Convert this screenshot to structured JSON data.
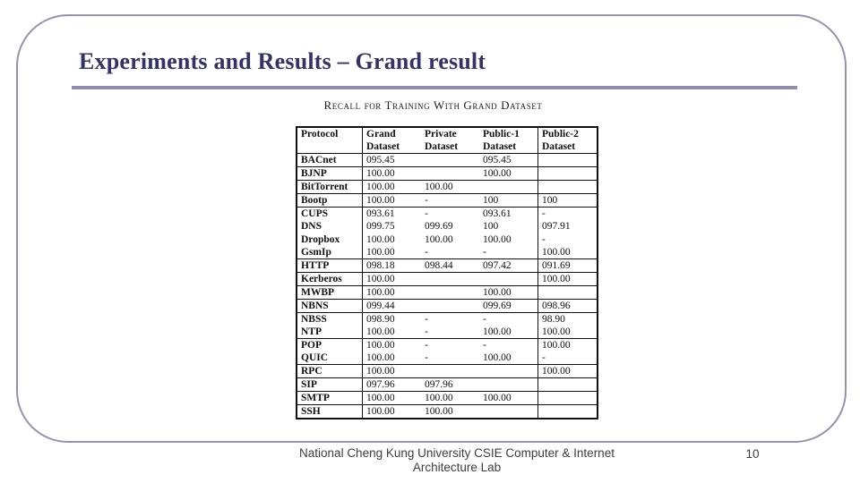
{
  "slide": {
    "title": "Experiments and Results – Grand result",
    "footer": {
      "line1": "National Cheng Kung University CSIE Computer & Internet",
      "line2": "Architecture Lab"
    },
    "page_number": "10"
  },
  "table": {
    "caption": "Recall for Training With Grand Dataset",
    "columns": [
      "Protocol",
      "Grand Dataset",
      "Private Dataset",
      "Public-1 Dataset",
      "Public-2 Dataset"
    ],
    "rows": [
      {
        "protocol": "BACnet",
        "values": [
          "095.45",
          "",
          "095.45",
          ""
        ],
        "line_after": true
      },
      {
        "protocol": "BJNP",
        "values": [
          "100.00",
          "",
          "100.00",
          ""
        ],
        "line_after": true
      },
      {
        "protocol": "BitTorrent",
        "values": [
          "100.00",
          "100.00",
          "",
          ""
        ],
        "line_after": true
      },
      {
        "protocol": "Bootp",
        "values": [
          "100.00",
          "-",
          "100",
          "100"
        ],
        "line_after": true
      },
      {
        "protocol": "CUPS",
        "values": [
          "093.61",
          "-",
          "093.61",
          "-"
        ],
        "line_after": false
      },
      {
        "protocol": "DNS",
        "values": [
          "099.75",
          "099.69",
          "100",
          "097.91"
        ],
        "line_after": false
      },
      {
        "protocol": "Dropbox",
        "values": [
          "100.00",
          "100.00",
          "100.00",
          "-"
        ],
        "line_after": false
      },
      {
        "protocol": "GsmIp",
        "values": [
          "100.00",
          "-",
          "-",
          "100.00"
        ],
        "line_after": true
      },
      {
        "protocol": "HTTP",
        "values": [
          "098.18",
          "098.44",
          "097.42",
          "091.69"
        ],
        "line_after": true
      },
      {
        "protocol": "Kerberos",
        "values": [
          "100.00",
          "",
          "",
          "100.00"
        ],
        "line_after": true
      },
      {
        "protocol": "MWBP",
        "values": [
          "100.00",
          "",
          "100.00",
          ""
        ],
        "line_after": true
      },
      {
        "protocol": "NBNS",
        "values": [
          "099.44",
          "",
          "099.69",
          "098.96"
        ],
        "line_after": true
      },
      {
        "protocol": "NBSS",
        "values": [
          "098.90",
          "-",
          "-",
          "98.90"
        ],
        "line_after": false
      },
      {
        "protocol": "NTP",
        "values": [
          "100.00",
          "-",
          "100.00",
          "100.00"
        ],
        "line_after": true
      },
      {
        "protocol": "POP",
        "values": [
          "100.00",
          "-",
          "-",
          "100.00"
        ],
        "line_after": false
      },
      {
        "protocol": "QUIC",
        "values": [
          "100.00",
          "-",
          "100.00",
          "-"
        ],
        "line_after": true
      },
      {
        "protocol": "RPC",
        "values": [
          "100.00",
          "",
          "",
          "100.00"
        ],
        "line_after": true
      },
      {
        "protocol": "SIP",
        "values": [
          "097.96",
          "097.96",
          "",
          ""
        ],
        "line_after": true
      },
      {
        "protocol": "SMTP",
        "values": [
          "100.00",
          "100.00",
          "100.00",
          ""
        ],
        "line_after": true
      },
      {
        "protocol": "SSH",
        "values": [
          "100.00",
          "100.00",
          "",
          ""
        ],
        "line_after": true
      }
    ]
  },
  "colors": {
    "accent_border": "#9393af",
    "title_text": "#333367",
    "table_text": "#101010",
    "footer_text": "#3d3d3d"
  }
}
